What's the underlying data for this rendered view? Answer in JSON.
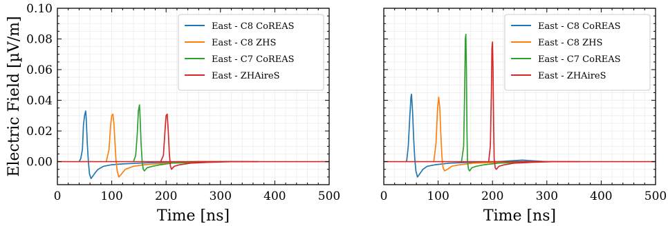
{
  "chart_data": [
    {
      "type": "line",
      "xlabel": "Time [ns]",
      "ylabel": "Electric Field [µV/m]",
      "xlim": [
        0,
        500
      ],
      "ylim": [
        -0.015,
        0.1
      ],
      "xticks": [
        "0",
        "100",
        "200",
        "300",
        "400",
        "500"
      ],
      "yticks": [
        "0.00",
        "0.02",
        "0.04",
        "0.06",
        "0.08",
        "0.10"
      ],
      "grid": true,
      "legend_position": "top-right",
      "baseline": 0,
      "series": [
        {
          "name": "East - C8 CoREAS",
          "color": "#1f77b4",
          "x": [
            40,
            43,
            46,
            48,
            50,
            52,
            53,
            55,
            57,
            59,
            62,
            66,
            70,
            75,
            85,
            100,
            120,
            150,
            190,
            250,
            320
          ],
          "y": [
            0,
            0.002,
            0.008,
            0.024,
            0.03,
            0.033,
            0.028,
            0.012,
            0.0,
            -0.008,
            -0.011,
            -0.009,
            -0.007,
            -0.005,
            -0.003,
            -0.002,
            -0.0015,
            -0.001,
            -0.0005,
            0,
            0
          ]
        },
        {
          "name": "East - C8 ZHS",
          "color": "#ff7f0e",
          "x": [
            90,
            95,
            98,
            100,
            102,
            104,
            106,
            108,
            110,
            113,
            118,
            125,
            140,
            160,
            200,
            260,
            330
          ],
          "y": [
            0,
            0.008,
            0.024,
            0.03,
            0.031,
            0.025,
            0.012,
            0.0,
            -0.006,
            -0.01,
            -0.008,
            -0.005,
            -0.003,
            -0.002,
            -0.001,
            0,
            0
          ]
        },
        {
          "name": "East - C7 CoREAS",
          "color": "#2ca02c",
          "x": [
            140,
            144,
            147,
            149,
            151,
            152,
            154,
            156,
            158,
            160,
            165,
            175,
            190,
            210,
            250,
            300,
            350
          ],
          "y": [
            0,
            0.004,
            0.018,
            0.033,
            0.037,
            0.03,
            0.012,
            0.0,
            -0.005,
            -0.006,
            -0.004,
            -0.003,
            -0.002,
            -0.001,
            -0.0005,
            0,
            0
          ]
        },
        {
          "name": "East - ZHAireS",
          "color": "#d62728",
          "x": [
            190,
            195,
            198,
            200,
            202,
            204,
            206,
            208,
            210,
            215,
            225,
            245,
            275,
            320,
            370
          ],
          "y": [
            0,
            0.004,
            0.02,
            0.03,
            0.031,
            0.02,
            0.005,
            -0.003,
            -0.005,
            -0.003,
            -0.002,
            -0.001,
            -0.0005,
            0,
            0
          ]
        }
      ]
    },
    {
      "type": "line",
      "xlabel": "Time [ns]",
      "ylabel": "",
      "xlim": [
        0,
        500
      ],
      "ylim": [
        -0.015,
        0.1
      ],
      "xticks": [
        "0",
        "100",
        "200",
        "300",
        "400",
        "500"
      ],
      "yticks": [],
      "grid": true,
      "legend_position": "top-right",
      "baseline": 0,
      "series": [
        {
          "name": "East - C8 CoREAS",
          "color": "#1f77b4",
          "x": [
            42,
            45,
            48,
            50,
            51,
            53,
            55,
            57,
            59,
            62,
            66,
            72,
            80,
            95,
            120,
            160,
            210,
            255,
            300
          ],
          "y": [
            0,
            0.01,
            0.03,
            0.042,
            0.044,
            0.032,
            0.015,
            0.002,
            -0.006,
            -0.01,
            -0.008,
            -0.005,
            -0.003,
            -0.002,
            -0.001,
            -0.0005,
            0,
            0.001,
            0
          ]
        },
        {
          "name": "East - C8 ZHS",
          "color": "#ff7f0e",
          "x": [
            92,
            96,
            99,
            101,
            103,
            105,
            107,
            109,
            112,
            117,
            125,
            140,
            165,
            210,
            260,
            320
          ],
          "y": [
            0,
            0.012,
            0.035,
            0.042,
            0.035,
            0.018,
            0.003,
            -0.004,
            -0.006,
            -0.005,
            -0.003,
            -0.002,
            -0.001,
            -0.0005,
            0,
            0
          ]
        },
        {
          "name": "East - C7 CoREAS",
          "color": "#2ca02c",
          "x": [
            143,
            147,
            149,
            150,
            151,
            152,
            153,
            154,
            156,
            158,
            162,
            170,
            185,
            210,
            250,
            300
          ],
          "y": [
            0,
            0.01,
            0.05,
            0.08,
            0.083,
            0.06,
            0.02,
            0.0,
            -0.005,
            -0.006,
            -0.004,
            -0.003,
            -0.002,
            -0.001,
            -0.0005,
            0
          ]
        },
        {
          "name": "East - ZHAireS",
          "color": "#d62728",
          "x": [
            193,
            196,
            198,
            199,
            200,
            201,
            202,
            203,
            205,
            207,
            212,
            222,
            240,
            270,
            310,
            360
          ],
          "y": [
            0,
            0.01,
            0.045,
            0.074,
            0.078,
            0.06,
            0.025,
            0.002,
            -0.004,
            -0.005,
            -0.003,
            -0.002,
            -0.001,
            -0.0005,
            0,
            0
          ]
        }
      ]
    }
  ]
}
